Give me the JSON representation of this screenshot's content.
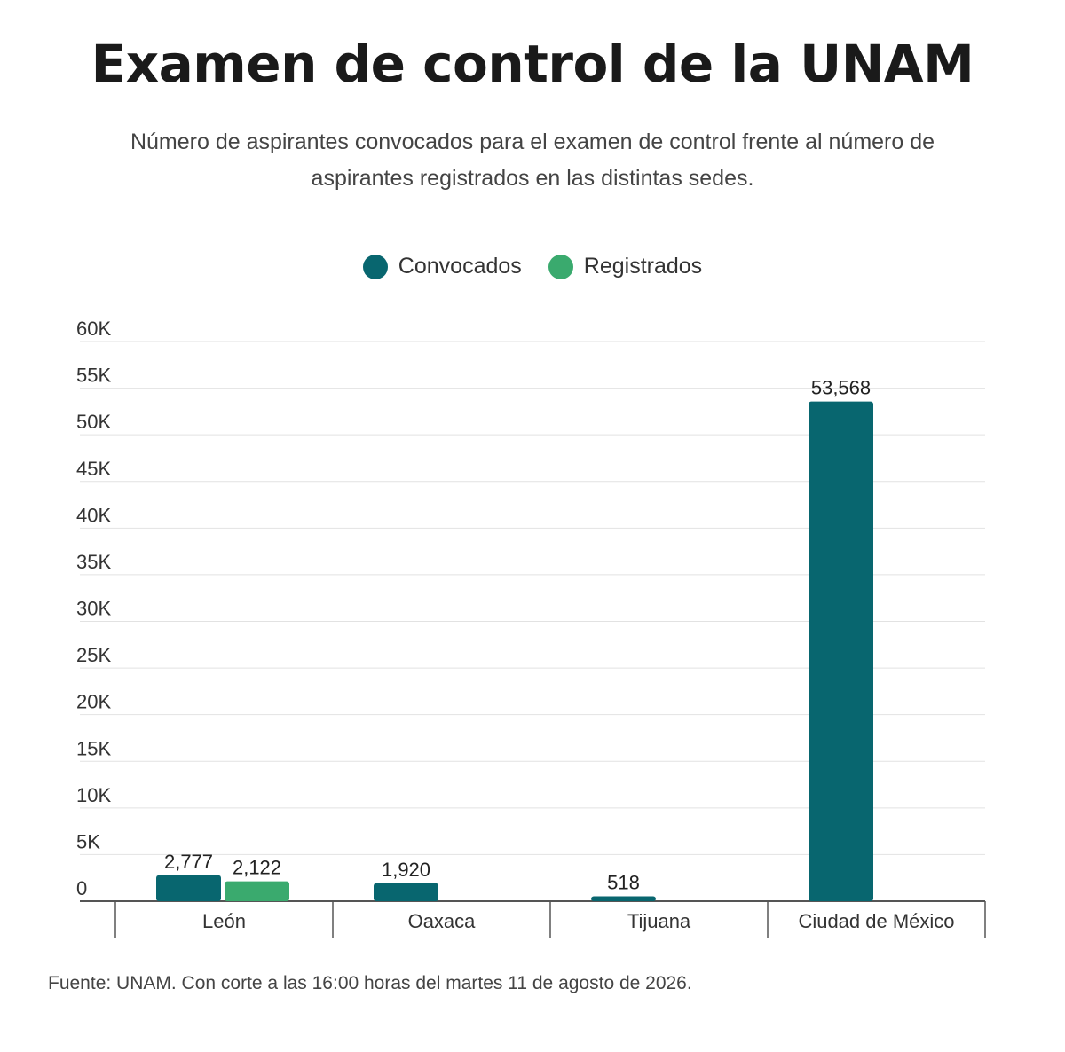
{
  "title": "Examen de control de la UNAM",
  "subtitle": "Número de aspirantes convocados para el examen de control frente al número de aspirantes registrados en las distintas sedes.",
  "source": "Fuente: UNAM. Con corte a las 16:00 horas del martes 11 de agosto de 2026.",
  "colors": {
    "convocados": "#08666f",
    "registrados": "#3aaa6e",
    "grid": "#e2e2e2",
    "axis": "#555555",
    "text": "#333333"
  },
  "chart_data": {
    "type": "bar",
    "title": "Examen de control de la UNAM",
    "xlabel": "",
    "ylabel": "",
    "ylim": [
      0,
      60000
    ],
    "categories": [
      "León",
      "Oaxaca",
      "Tijuana",
      "Ciudad de México"
    ],
    "series": [
      {
        "name": "Convocados",
        "values": [
          2777,
          1920,
          518,
          53568
        ],
        "labels": [
          "2,777",
          "1,920",
          "518",
          "53,568"
        ]
      },
      {
        "name": "Registrados",
        "values": [
          2122,
          null,
          null,
          null
        ],
        "labels": [
          "2,122",
          null,
          null,
          null
        ]
      }
    ],
    "yticks": [
      "0",
      "5K",
      "10K",
      "15K",
      "20K",
      "25K",
      "30K",
      "35K",
      "40K",
      "45K",
      "50K",
      "55K",
      "60K"
    ],
    "grid": true,
    "legend": "top-center"
  }
}
